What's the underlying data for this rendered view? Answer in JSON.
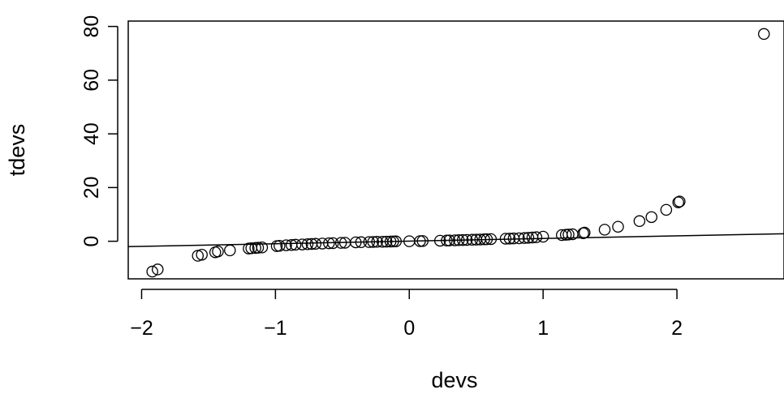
{
  "chart_data": {
    "type": "scatter",
    "title": "",
    "xlabel": "devs",
    "ylabel": "tdevs",
    "xlim": [
      -2.1,
      2.8
    ],
    "ylim": [
      -14,
      82
    ],
    "x_ticks": [
      -2,
      -1,
      0,
      1,
      2
    ],
    "x_tick_labels": [
      "−2",
      "−1",
      "0",
      "1",
      "2"
    ],
    "y_ticks": [
      0,
      20,
      40,
      60,
      80
    ],
    "y_tick_labels": [
      "0",
      "20",
      "40",
      "60",
      "80"
    ],
    "grid": false,
    "reference_line": {
      "x": [
        -2.1,
        2.8
      ],
      "y": [
        -2.0,
        2.8
      ]
    },
    "points": [
      [
        -1.92,
        -11.3
      ],
      [
        -1.88,
        -10.5
      ],
      [
        -1.58,
        -5.4
      ],
      [
        -1.55,
        -5.0
      ],
      [
        -1.45,
        -4.1
      ],
      [
        -1.43,
        -3.8
      ],
      [
        -1.34,
        -3.4
      ],
      [
        -1.2,
        -2.7
      ],
      [
        -1.18,
        -2.6
      ],
      [
        -1.15,
        -2.5
      ],
      [
        -1.13,
        -2.4
      ],
      [
        -1.1,
        -2.3
      ],
      [
        -0.99,
        -1.8
      ],
      [
        -0.97,
        -1.7
      ],
      [
        -0.92,
        -1.5
      ],
      [
        -0.88,
        -1.4
      ],
      [
        -0.85,
        -1.3
      ],
      [
        -0.8,
        -1.2
      ],
      [
        -0.76,
        -1.1
      ],
      [
        -0.73,
        -1.0
      ],
      [
        -0.7,
        -0.95
      ],
      [
        -0.65,
        -0.85
      ],
      [
        -0.6,
        -0.75
      ],
      [
        -0.57,
        -0.7
      ],
      [
        -0.51,
        -0.6
      ],
      [
        -0.48,
        -0.55
      ],
      [
        -0.4,
        -0.4
      ],
      [
        -0.36,
        -0.35
      ],
      [
        -0.3,
        -0.3
      ],
      [
        -0.27,
        -0.25
      ],
      [
        -0.24,
        -0.2
      ],
      [
        -0.2,
        -0.18
      ],
      [
        -0.17,
        -0.15
      ],
      [
        -0.14,
        -0.1
      ],
      [
        -0.12,
        -0.08
      ],
      [
        -0.1,
        -0.05
      ],
      [
        0.0,
        0.0
      ],
      [
        0.08,
        0.05
      ],
      [
        0.1,
        0.08
      ],
      [
        0.23,
        0.2
      ],
      [
        0.28,
        0.25
      ],
      [
        0.3,
        0.3
      ],
      [
        0.34,
        0.35
      ],
      [
        0.37,
        0.4
      ],
      [
        0.4,
        0.45
      ],
      [
        0.43,
        0.5
      ],
      [
        0.47,
        0.55
      ],
      [
        0.5,
        0.6
      ],
      [
        0.53,
        0.65
      ],
      [
        0.56,
        0.7
      ],
      [
        0.58,
        0.75
      ],
      [
        0.61,
        0.8
      ],
      [
        0.72,
        0.95
      ],
      [
        0.75,
        1.0
      ],
      [
        0.78,
        1.05
      ],
      [
        0.82,
        1.1
      ],
      [
        0.86,
        1.2
      ],
      [
        0.89,
        1.3
      ],
      [
        0.92,
        1.4
      ],
      [
        0.95,
        1.5
      ],
      [
        1.0,
        1.7
      ],
      [
        1.14,
        2.3
      ],
      [
        1.17,
        2.4
      ],
      [
        1.19,
        2.5
      ],
      [
        1.22,
        2.6
      ],
      [
        1.3,
        3.0
      ],
      [
        1.31,
        3.2
      ],
      [
        1.46,
        4.3
      ],
      [
        1.56,
        5.4
      ],
      [
        1.72,
        7.5
      ],
      [
        1.81,
        9.0
      ],
      [
        1.92,
        11.7
      ],
      [
        2.01,
        14.5
      ],
      [
        2.02,
        14.8
      ],
      [
        2.65,
        77.2
      ]
    ]
  }
}
